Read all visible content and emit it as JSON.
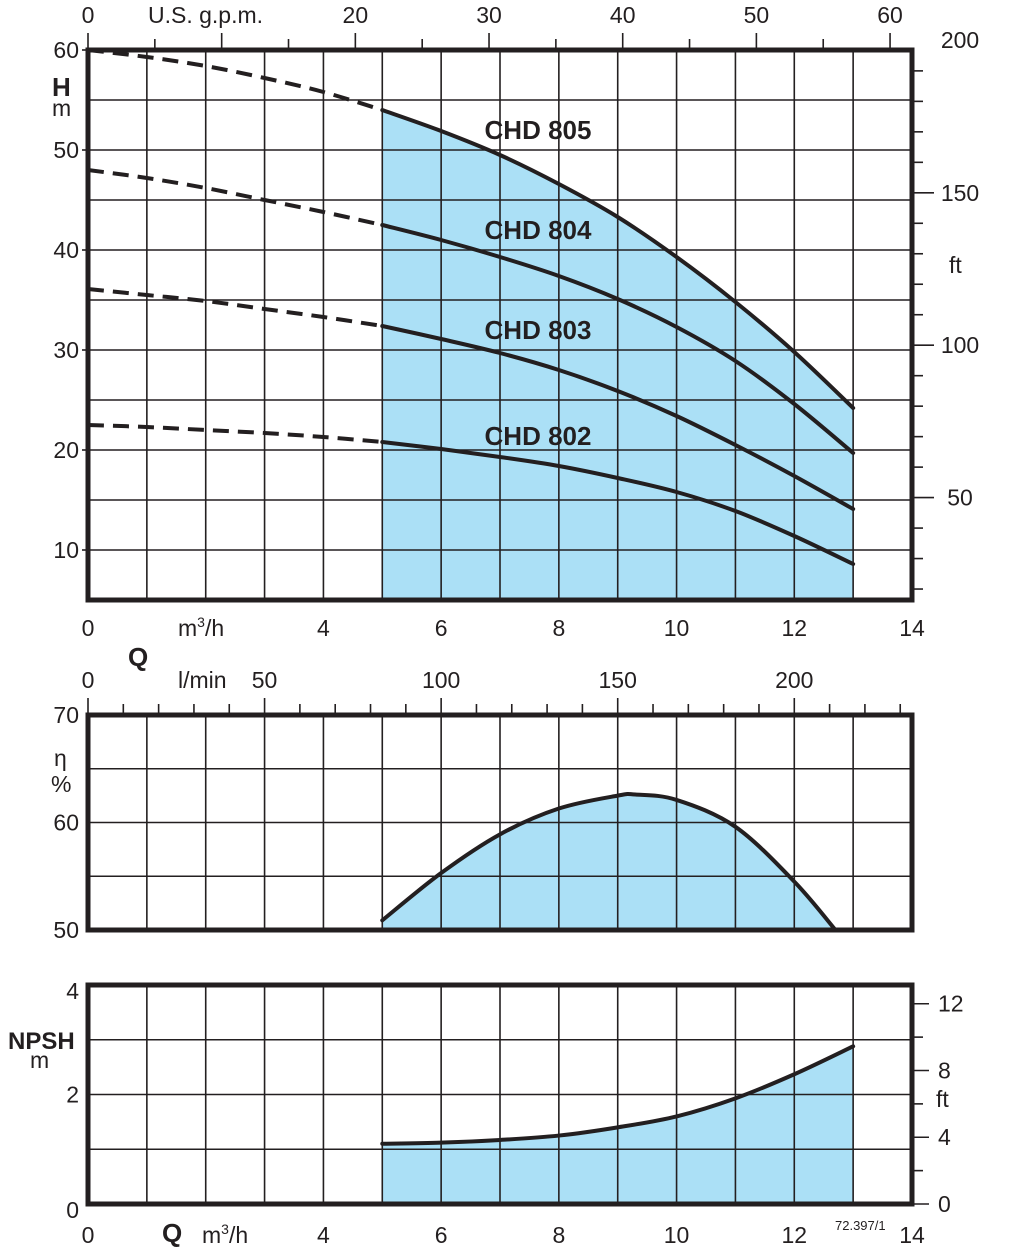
{
  "figure_ref": "72.397/1",
  "colors": {
    "fill": "#abe0f6",
    "line": "#231f20"
  },
  "chart_data": [
    {
      "type": "line",
      "title": "Head curves",
      "ylabel": "H",
      "yunit": "m",
      "y2unit": "ft",
      "xlabel": "Q",
      "xunit": "m³/h",
      "x2unit": "U.S. g.p.m.",
      "xlim": [
        0,
        14
      ],
      "ylim": [
        5,
        60
      ],
      "x_ticks": [
        0,
        4,
        6,
        8,
        10,
        12,
        14
      ],
      "x_tick_labels": [
        "0",
        "4",
        "6",
        "8",
        "10",
        "12",
        "14"
      ],
      "y_ticks": [
        10,
        20,
        30,
        40,
        50,
        60
      ],
      "y_tick_labels": [
        "10",
        "20",
        "30",
        "40",
        "50",
        "60"
      ],
      "x2_ticks_gpm": [
        0,
        20,
        30,
        40,
        50,
        60
      ],
      "x2_tick_labels": [
        "0",
        "20",
        "30",
        "40",
        "50",
        "60"
      ],
      "y2_ticks_ft": [
        50,
        100,
        150,
        200
      ],
      "y2_tick_labels": [
        "50",
        "100",
        "150",
        "200"
      ],
      "grid": true,
      "shaded_range_q": [
        5,
        13
      ],
      "series": [
        {
          "name": "CHD 805",
          "dashed_x": [
            0,
            1,
            2,
            3,
            4,
            5
          ],
          "dashed_y": [
            60,
            59.3,
            58.4,
            57.2,
            55.8,
            54.0
          ],
          "x": [
            5,
            6,
            7,
            8,
            9,
            10,
            11,
            12,
            13
          ],
          "y": [
            54.0,
            51.9,
            49.5,
            46.6,
            43.3,
            39.3,
            34.8,
            29.8,
            24.2
          ]
        },
        {
          "name": "CHD 804",
          "dashed_x": [
            0,
            1,
            2,
            3,
            4,
            5
          ],
          "dashed_y": [
            48.0,
            47.2,
            46.2,
            45.0,
            43.8,
            42.5
          ],
          "x": [
            5,
            6,
            7,
            8,
            9,
            10,
            11,
            12,
            13
          ],
          "y": [
            42.5,
            41.0,
            39.3,
            37.4,
            35.1,
            32.3,
            28.9,
            24.6,
            19.7
          ]
        },
        {
          "name": "CHD 803",
          "dashed_x": [
            0,
            1,
            2,
            3,
            4,
            5
          ],
          "dashed_y": [
            36.1,
            35.5,
            34.9,
            34.1,
            33.3,
            32.4
          ],
          "x": [
            5,
            6,
            7,
            8,
            9,
            10,
            11,
            12,
            13
          ],
          "y": [
            32.4,
            31.1,
            29.7,
            28.0,
            25.9,
            23.4,
            20.5,
            17.4,
            14.1
          ]
        },
        {
          "name": "CHD 802",
          "dashed_x": [
            0,
            1,
            2,
            3,
            4,
            5
          ],
          "dashed_y": [
            22.5,
            22.3,
            22.0,
            21.7,
            21.3,
            20.8
          ],
          "x": [
            5,
            6,
            7,
            8,
            9,
            10,
            11,
            12,
            13
          ],
          "y": [
            20.8,
            20.1,
            19.3,
            18.4,
            17.2,
            15.8,
            13.9,
            11.4,
            8.6
          ]
        }
      ]
    },
    {
      "type": "area",
      "title": "Efficiency",
      "ylabel": "η",
      "yunit": "%",
      "xlabel": "Q",
      "x2unit": "l/min",
      "xlim": [
        0,
        14
      ],
      "ylim": [
        50,
        70
      ],
      "y_ticks": [
        50,
        60,
        70
      ],
      "y_tick_labels": [
        "50",
        "60",
        "70"
      ],
      "lmin_ticks": [
        0,
        50,
        100,
        150,
        200
      ],
      "lmin_tick_labels": [
        "0",
        "50",
        "100",
        "150",
        "200"
      ],
      "grid": true,
      "x": [
        5,
        6,
        7,
        8,
        9,
        9.3,
        10,
        11,
        12,
        12.7
      ],
      "y": [
        50.9,
        55.3,
        58.9,
        61.3,
        62.5,
        62.6,
        62.1,
        59.6,
        54.5,
        50.0
      ]
    },
    {
      "type": "area",
      "title": "NPSH",
      "ylabel": "NPSH",
      "yunit": "m",
      "y2unit": "ft",
      "xlabel": "Q",
      "xunit": "m³/h",
      "xlim": [
        0,
        14
      ],
      "ylim": [
        0,
        4
      ],
      "y_ticks": [
        0,
        2,
        4
      ],
      "y_tick_labels": [
        "0",
        "2",
        "4"
      ],
      "y2_ticks_ft": [
        0,
        4,
        8,
        12
      ],
      "y2_tick_labels": [
        "0",
        "4",
        "8",
        "12"
      ],
      "x_ticks": [
        0,
        4,
        6,
        8,
        10,
        12,
        14
      ],
      "x_tick_labels": [
        "0",
        "4",
        "6",
        "8",
        "10",
        "12",
        "14"
      ],
      "grid": true,
      "x": [
        5,
        6,
        7,
        8,
        9,
        10,
        11,
        12,
        13
      ],
      "y": [
        1.1,
        1.12,
        1.17,
        1.25,
        1.4,
        1.6,
        1.93,
        2.37,
        2.88
      ]
    }
  ],
  "labels": {
    "h_axis": "H",
    "h_unit": "m",
    "ft_unit": "ft",
    "gpm_unit": "U.S.  g.p.m.",
    "q_axis": "Q",
    "m3h_unit": "m",
    "m3h_sup": "3",
    "m3h_tail": "/h",
    "lmin_unit": "l/min",
    "eta_axis": "η",
    "eta_unit": "%",
    "npsh_axis": "NPSH",
    "npsh_unit": "m"
  }
}
